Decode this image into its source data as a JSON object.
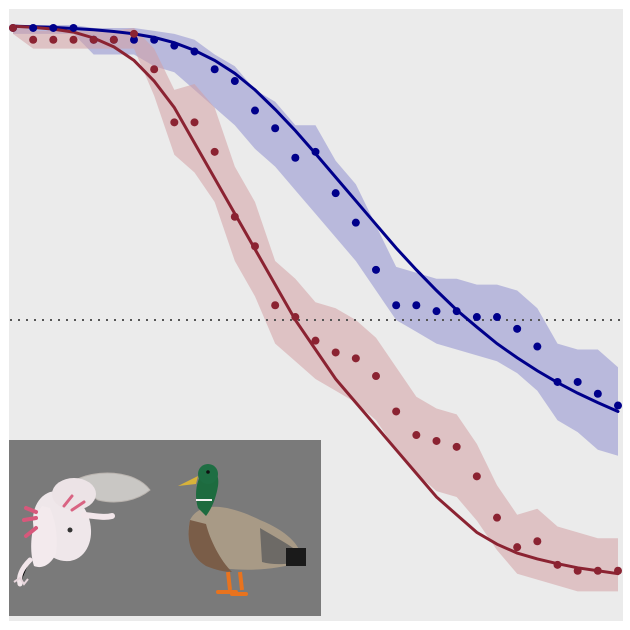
{
  "chart_data": {
    "type": "scatter",
    "title": "",
    "xlabel": "",
    "ylabel": "",
    "xlim": [
      0,
      30
    ],
    "ylim": [
      0,
      1
    ],
    "grid": false,
    "legend": "none",
    "background_color": "#ebebeb",
    "reference_line": {
      "y": 0.5,
      "style": "dotted",
      "color": "#555555"
    },
    "x": [
      0,
      1,
      2,
      3,
      4,
      5,
      6,
      7,
      8,
      9,
      10,
      11,
      12,
      13,
      14,
      15,
      16,
      17,
      18,
      19,
      20,
      21,
      22,
      23,
      24,
      25,
      26,
      27,
      28,
      29,
      30
    ],
    "series": [
      {
        "color": "#00008b",
        "band_color": "#8f8fcf",
        "points": [
          0.995,
          0.995,
          0.995,
          0.995,
          0.975,
          0.975,
          0.975,
          0.975,
          0.965,
          0.955,
          0.925,
          0.905,
          0.855,
          0.825,
          0.775,
          0.785,
          0.715,
          0.665,
          0.585,
          0.525,
          0.525,
          0.515,
          0.515,
          0.505,
          0.505,
          0.485,
          0.455,
          0.395,
          0.395,
          0.375,
          0.355
        ],
        "band_low": [
          0.985,
          0.985,
          0.985,
          0.985,
          0.95,
          0.95,
          0.95,
          0.93,
          0.92,
          0.89,
          0.86,
          0.83,
          0.79,
          0.76,
          0.72,
          0.68,
          0.64,
          0.6,
          0.55,
          0.5,
          0.48,
          0.46,
          0.45,
          0.44,
          0.43,
          0.41,
          0.38,
          0.33,
          0.31,
          0.28,
          0.27
        ],
        "band_high": [
          1.0,
          1.0,
          1.0,
          1.0,
          0.995,
          0.995,
          0.995,
          0.99,
          0.985,
          0.975,
          0.95,
          0.93,
          0.89,
          0.87,
          0.83,
          0.83,
          0.77,
          0.73,
          0.66,
          0.59,
          0.58,
          0.57,
          0.57,
          0.56,
          0.56,
          0.55,
          0.52,
          0.46,
          0.45,
          0.45,
          0.42
        ],
        "fit_curve": [
          0.998,
          0.997,
          0.996,
          0.994,
          0.992,
          0.989,
          0.985,
          0.979,
          0.97,
          0.957,
          0.94,
          0.918,
          0.89,
          0.857,
          0.821,
          0.782,
          0.742,
          0.702,
          0.662,
          0.622,
          0.585,
          0.55,
          0.517,
          0.488,
          0.46,
          0.436,
          0.414,
          0.394,
          0.376,
          0.36,
          0.345
        ]
      },
      {
        "color": "#8b2332",
        "band_color": "#d4a0a4",
        "points": [
          0.995,
          0.975,
          0.975,
          0.975,
          0.975,
          0.975,
          0.985,
          0.925,
          0.835,
          0.835,
          0.785,
          0.675,
          0.625,
          0.525,
          0.505,
          0.465,
          0.445,
          0.435,
          0.405,
          0.345,
          0.305,
          0.295,
          0.285,
          0.235,
          0.165,
          0.115,
          0.125,
          0.085,
          0.075,
          0.075,
          0.075
        ],
        "band_low": [
          0.985,
          0.96,
          0.96,
          0.96,
          0.96,
          0.96,
          0.96,
          0.88,
          0.78,
          0.75,
          0.7,
          0.6,
          0.54,
          0.46,
          0.43,
          0.4,
          0.38,
          0.36,
          0.33,
          0.28,
          0.24,
          0.21,
          0.2,
          0.16,
          0.11,
          0.07,
          0.06,
          0.05,
          0.04,
          0.04,
          0.04
        ],
        "band_high": [
          1.0,
          0.99,
          0.99,
          0.99,
          0.99,
          0.99,
          0.995,
          0.96,
          0.89,
          0.9,
          0.86,
          0.76,
          0.7,
          0.6,
          0.57,
          0.53,
          0.52,
          0.5,
          0.47,
          0.42,
          0.37,
          0.35,
          0.34,
          0.29,
          0.22,
          0.17,
          0.18,
          0.15,
          0.14,
          0.13,
          0.13
        ],
        "fit_curve": [
          0.998,
          0.996,
          0.993,
          0.988,
          0.978,
          0.963,
          0.94,
          0.905,
          0.86,
          0.8,
          0.74,
          0.68,
          0.62,
          0.56,
          0.5,
          0.45,
          0.4,
          0.36,
          0.32,
          0.28,
          0.24,
          0.2,
          0.17,
          0.14,
          0.12,
          0.105,
          0.095,
          0.087,
          0.08,
          0.075,
          0.07
        ]
      }
    ]
  },
  "inset": {
    "background_color": "#7a7a7a",
    "images": [
      {
        "icon": "axolotl-icon"
      },
      {
        "icon": "mallard-duck-icon"
      }
    ]
  }
}
